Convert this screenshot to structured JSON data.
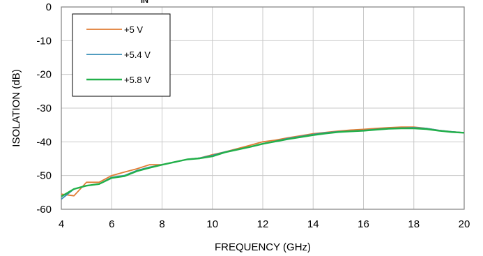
{
  "chart_data": {
    "type": "line",
    "title": "",
    "title_fragment": "IN",
    "xlabel": "FREQUENCY (GHz)",
    "ylabel": "ISOLATION (dB)",
    "xlim": [
      4,
      20
    ],
    "ylim": [
      -60,
      0
    ],
    "xticks": [
      "4",
      "6",
      "8",
      "10",
      "12",
      "14",
      "16",
      "18",
      "20"
    ],
    "yticks": [
      "0",
      "-10",
      "-20",
      "-30",
      "-40",
      "-50",
      "-60"
    ],
    "grid": true,
    "legend_position": "top-left",
    "series": [
      {
        "name": "+5 V",
        "color": "#e07b32",
        "x": [
          4,
          4.5,
          5,
          5.5,
          6,
          6.5,
          7,
          7.5,
          8,
          8.5,
          9,
          9.5,
          10,
          10.5,
          11,
          11.5,
          12,
          12.5,
          13,
          13.5,
          14,
          14.5,
          15,
          15.5,
          16,
          16.5,
          17,
          17.5,
          18,
          18.5,
          19,
          19.5,
          20
        ],
        "y": [
          -55.5,
          -56,
          -52,
          -52,
          -50,
          -49,
          -48,
          -46.8,
          -46.8,
          -46,
          -45.2,
          -44.8,
          -43.8,
          -43,
          -42,
          -41,
          -40,
          -39.5,
          -38.8,
          -38.2,
          -37.6,
          -37.2,
          -36.8,
          -36.5,
          -36.3,
          -36,
          -35.8,
          -35.6,
          -35.6,
          -36,
          -36.6,
          -37,
          -37.3
        ]
      },
      {
        "name": "+5.4 V",
        "color": "#3a8fb7",
        "x": [
          4,
          4.5,
          5,
          5.5,
          6,
          6.5,
          7,
          7.5,
          8,
          8.5,
          9,
          9.5,
          10,
          10.5,
          11,
          11.5,
          12,
          12.5,
          13,
          13.5,
          14,
          14.5,
          15,
          15.5,
          16,
          16.5,
          17,
          17.5,
          18,
          18.5,
          19,
          19.5,
          20
        ],
        "y": [
          -57,
          -54,
          -53,
          -52.5,
          -50.5,
          -50,
          -48.5,
          -47.5,
          -46.8,
          -46,
          -45.2,
          -44.8,
          -44,
          -43,
          -42.2,
          -41.5,
          -40.5,
          -39.8,
          -39,
          -38.4,
          -37.8,
          -37.3,
          -37,
          -36.8,
          -36.6,
          -36.3,
          -36,
          -35.9,
          -35.8,
          -36,
          -36.6,
          -37,
          -37.3
        ]
      },
      {
        "name": "+5.8 V",
        "color": "#22b04a",
        "x": [
          4,
          4.5,
          5,
          5.5,
          6,
          6.5,
          7,
          7.5,
          8,
          8.5,
          9,
          9.5,
          10,
          10.5,
          11,
          11.5,
          12,
          12.5,
          13,
          13.5,
          14,
          14.5,
          15,
          15.5,
          16,
          16.5,
          17,
          17.5,
          18,
          18.5,
          19,
          19.5,
          20
        ],
        "y": [
          -56.2,
          -54,
          -53,
          -52.5,
          -50.7,
          -50.2,
          -48.7,
          -47.7,
          -46.8,
          -46,
          -45.2,
          -44.9,
          -44.3,
          -43.1,
          -42.3,
          -41.5,
          -40.6,
          -39.9,
          -39.2,
          -38.6,
          -38,
          -37.5,
          -37.1,
          -36.9,
          -36.7,
          -36.4,
          -36.1,
          -36,
          -36,
          -36.2,
          -36.7,
          -37.1,
          -37.3
        ]
      }
    ]
  }
}
